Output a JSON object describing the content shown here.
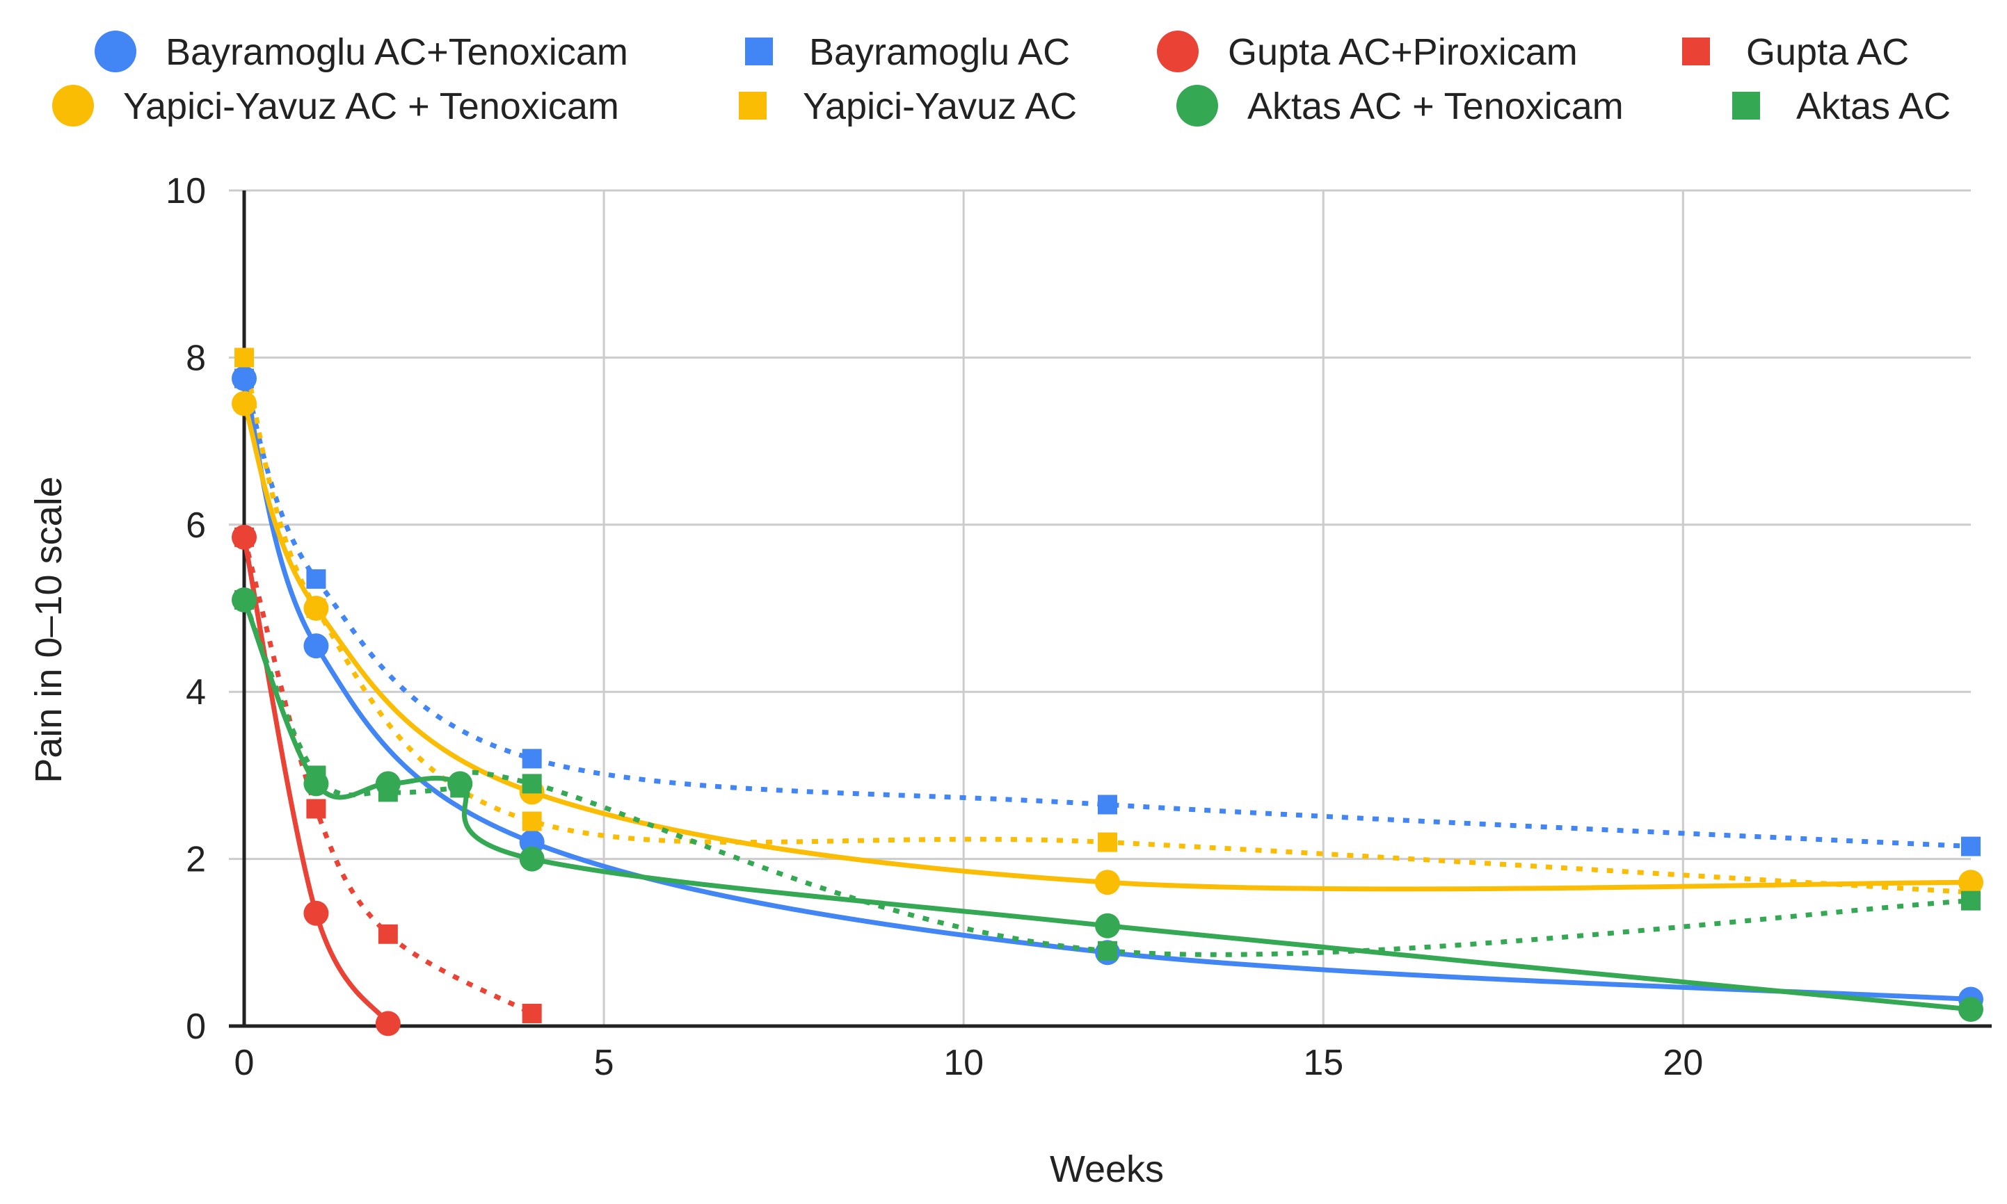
{
  "chart_data": {
    "type": "line",
    "title": "",
    "xlabel": "Weeks",
    "ylabel": "Pain in 0–10 scale",
    "xlim": [
      0,
      24
    ],
    "ylim": [
      0,
      10
    ],
    "xticks": [
      "0",
      "5",
      "10",
      "15",
      "20"
    ],
    "xtick_values": [
      0,
      5,
      10,
      15,
      20
    ],
    "yticks": [
      "0",
      "2",
      "4",
      "6",
      "8",
      "10"
    ],
    "ytick_values": [
      0,
      2,
      4,
      6,
      8,
      10
    ],
    "grid": true,
    "legend_placement": "top",
    "series": [
      {
        "name": "Bayramoglu AC+Tenoxicam",
        "color": "#4285F4",
        "marker": "circle",
        "line": "solid",
        "x": [
          0,
          1,
          4,
          12,
          24
        ],
        "y": [
          7.75,
          4.55,
          2.2,
          0.88,
          0.32
        ]
      },
      {
        "name": "Bayramoglu AC",
        "color": "#4285F4",
        "marker": "square",
        "line": "dotted",
        "x": [
          0,
          1,
          4,
          12,
          24
        ],
        "y": [
          7.75,
          5.35,
          3.2,
          2.65,
          2.15
        ]
      },
      {
        "name": "Gupta AC+Piroxicam",
        "color": "#EA4335",
        "marker": "circle",
        "line": "solid",
        "x": [
          0,
          1,
          2
        ],
        "y": [
          5.85,
          1.35,
          0.03
        ]
      },
      {
        "name": "Gupta AC",
        "color": "#EA4335",
        "marker": "square",
        "line": "dotted",
        "x": [
          0,
          1,
          2,
          4
        ],
        "y": [
          5.85,
          2.6,
          1.1,
          0.15
        ]
      },
      {
        "name": "Yapici-Yavuz AC + Tenoxicam",
        "color": "#FBBC04",
        "marker": "circle",
        "line": "solid",
        "x": [
          0,
          1,
          4,
          12,
          24
        ],
        "y": [
          7.45,
          5.0,
          2.8,
          1.72,
          1.72
        ]
      },
      {
        "name": "Yapici-Yavuz AC",
        "color": "#FBBC04",
        "marker": "square",
        "line": "dotted",
        "x": [
          0,
          1,
          4,
          12,
          24
        ],
        "y": [
          8.0,
          5.0,
          2.45,
          2.2,
          1.6
        ]
      },
      {
        "name": "Aktas AC + Tenoxicam",
        "color": "#34A853",
        "marker": "circle",
        "line": "solid",
        "x": [
          0,
          1,
          2,
          3,
          4,
          12,
          24
        ],
        "y": [
          5.1,
          2.9,
          2.9,
          2.9,
          2.0,
          1.2,
          0.2
        ]
      },
      {
        "name": "Aktas AC",
        "color": "#34A853",
        "marker": "square",
        "line": "dotted",
        "x": [
          0,
          1,
          2,
          3,
          4,
          12,
          24
        ],
        "y": [
          5.1,
          3.0,
          2.8,
          2.85,
          2.9,
          0.9,
          1.5
        ]
      }
    ]
  }
}
